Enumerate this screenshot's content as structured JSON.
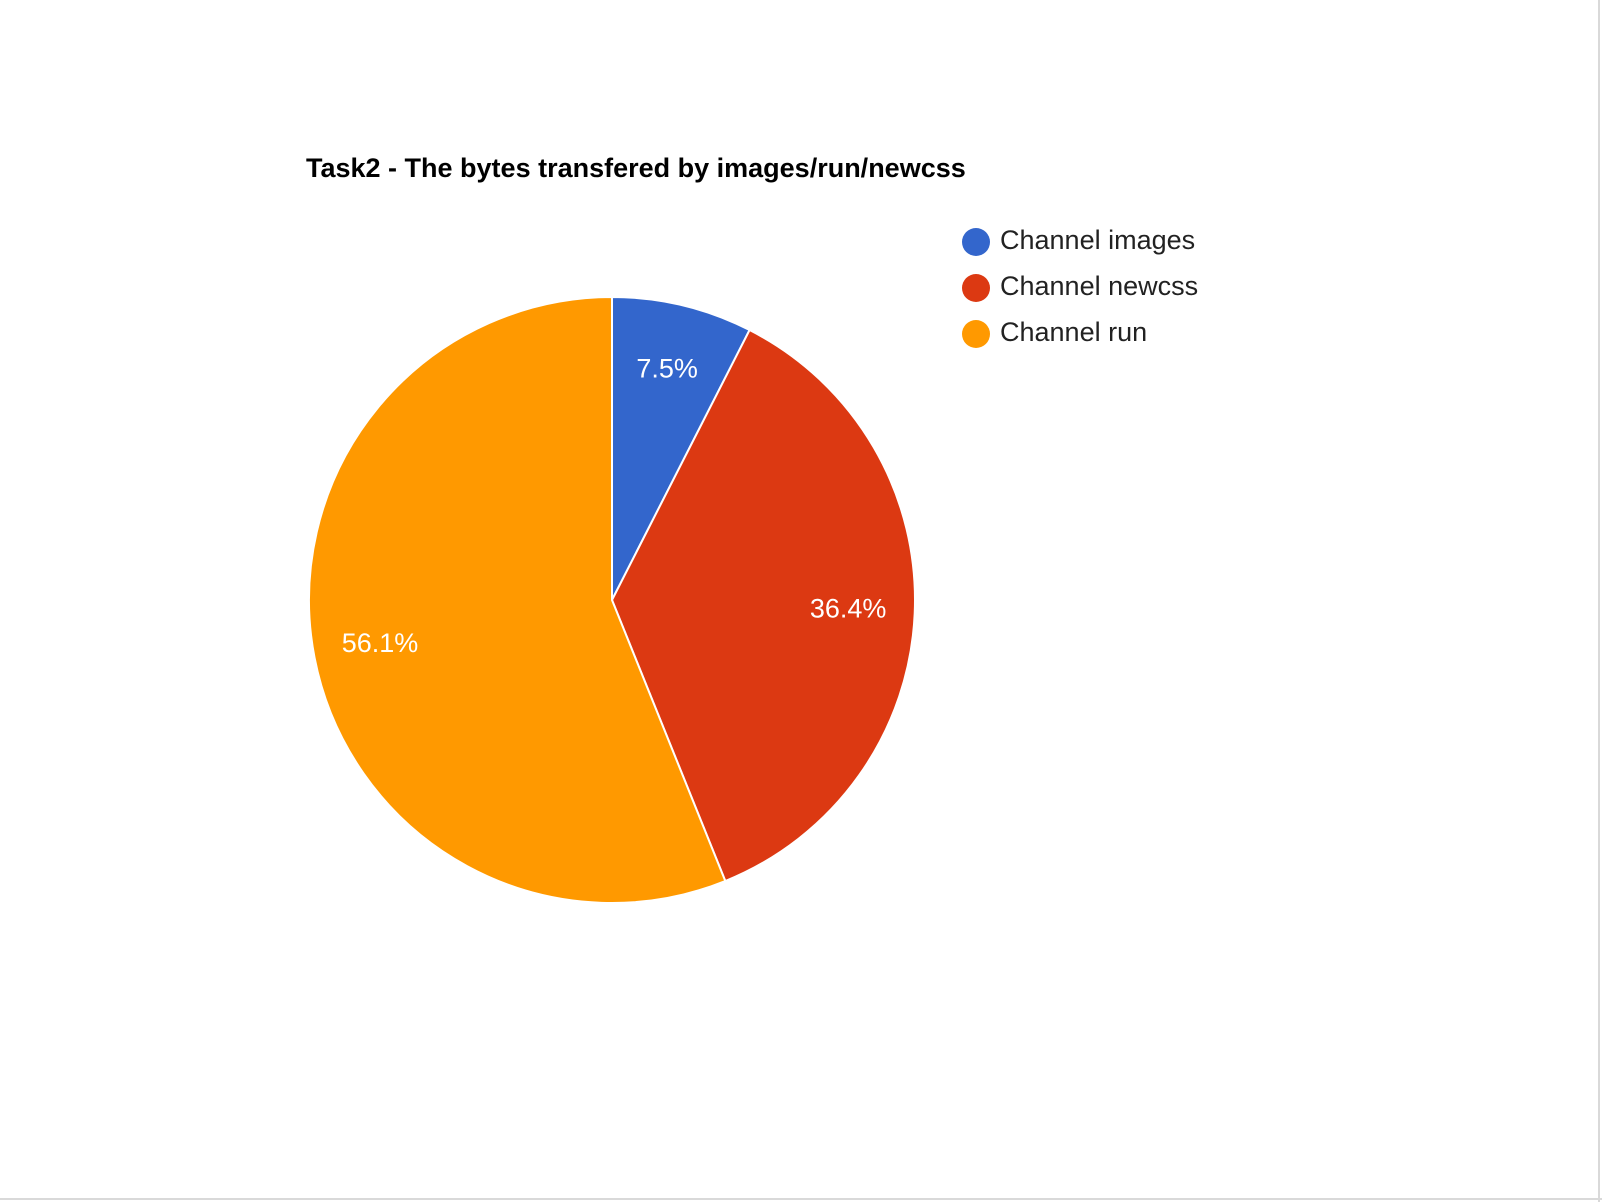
{
  "chart_data": {
    "type": "pie",
    "title": "Task2 - The bytes transfered by images/run/newcss",
    "labels": [
      "Channel images",
      "Channel newcss",
      "Channel run"
    ],
    "values": [
      7.5,
      36.4,
      56.1
    ],
    "value_labels": [
      "7.5%",
      "36.4%",
      "56.1%"
    ],
    "colors": [
      "#3366cc",
      "#dc3912",
      "#ff9900"
    ],
    "legend_position": "right"
  }
}
